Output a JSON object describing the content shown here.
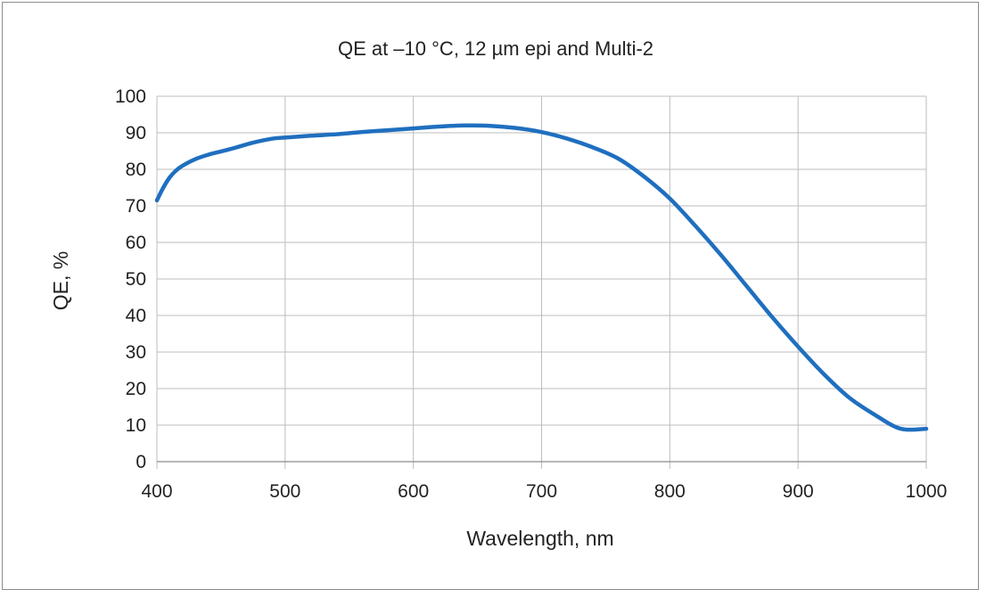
{
  "chart_data": {
    "type": "line",
    "title": "QE at –10 °C, 12 µm epi and Multi-2",
    "xlabel": "Wavelength, nm",
    "ylabel": "QE, %",
    "xlim": [
      400,
      1000
    ],
    "ylim": [
      0,
      100
    ],
    "xticks": [
      "400",
      "500",
      "600",
      "700",
      "800",
      "900",
      "1000"
    ],
    "yticks": [
      "0",
      "10",
      "20",
      "30",
      "40",
      "50",
      "60",
      "70",
      "80",
      "90",
      "100"
    ],
    "grid": true,
    "legend": "none",
    "line_color": "#1f6fbf",
    "series": [
      {
        "x": [
          400,
          405,
          410,
          415,
          420,
          430,
          440,
          450,
          460,
          475,
          490,
          500,
          520,
          540,
          560,
          580,
          600,
          620,
          640,
          660,
          680,
          700,
          720,
          740,
          760,
          780,
          800,
          820,
          840,
          860,
          880,
          900,
          920,
          940,
          960,
          980,
          1000
        ],
        "y": [
          71.5,
          75,
          77.8,
          79.7,
          81,
          82.8,
          84,
          84.9,
          85.8,
          87.3,
          88.4,
          88.7,
          89.2,
          89.6,
          90.2,
          90.7,
          91.2,
          91.7,
          92,
          91.9,
          91.3,
          90.2,
          88.4,
          86,
          82.9,
          78,
          72,
          64.5,
          56.5,
          48,
          39.5,
          31.5,
          24,
          17.5,
          12.8,
          9,
          9
        ]
      }
    ]
  }
}
